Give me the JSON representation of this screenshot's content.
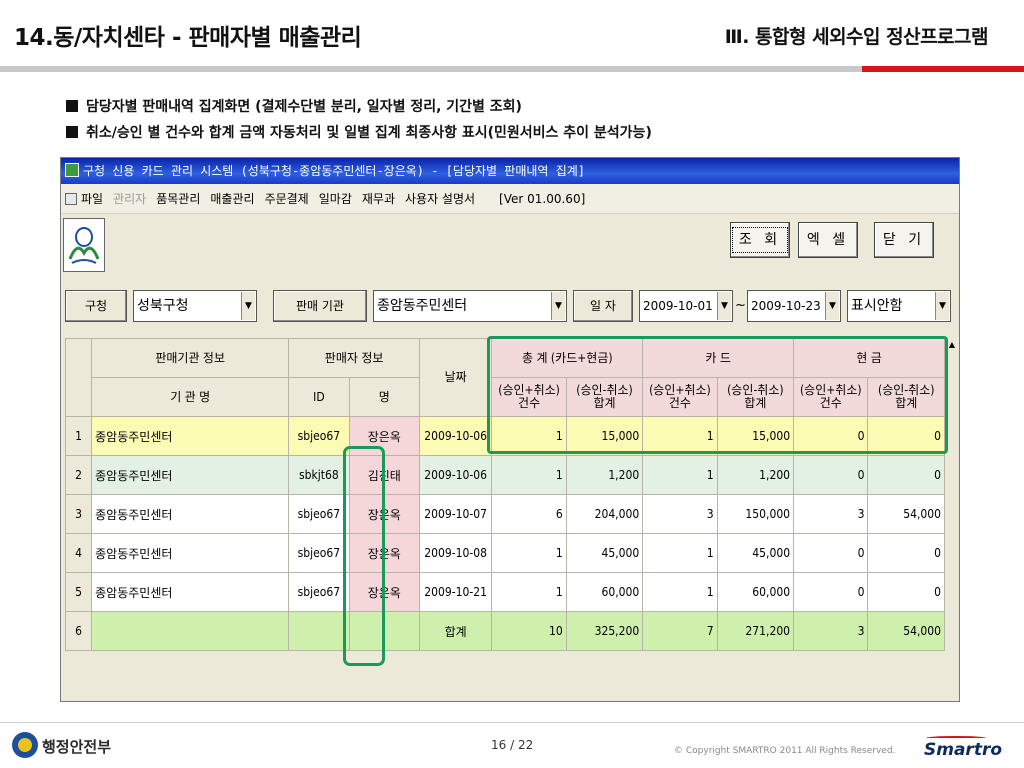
{
  "slide": {
    "title": "14.동/자치센타 - 판매자별 매출관리",
    "subtitle": "Ⅲ. 통합형 세외수입 정산프로그램",
    "bullets": [
      "담당자별 판매내역 집계화면 (결제수단별 분리, 일자별 정리, 기간별 조회)",
      "취소/승인 별 건수와 합계 금액 자동처리 및 일별 집계 최종사항 표시(민원서비스 추이 분석가능)"
    ]
  },
  "window": {
    "title": "구청 신용 카드 관리 시스템 (성북구청-종암동주민센터-장은옥) - [담당자별 판매내역 집계]",
    "menu": [
      "파일",
      "관리자",
      "품목관리",
      "매출관리",
      "주문결제",
      "일마감",
      "재무과",
      "사용자 설명서"
    ],
    "version": "[Ver 01.00.60]",
    "buttons": {
      "inquiry": "조 회",
      "excel": "엑 셀",
      "close": "닫 기"
    }
  },
  "filters": {
    "office_label": "구청",
    "office_value": "성북구청",
    "seller_label": "판매 기관",
    "seller_value": "종암동주민센터",
    "date_label": "일 자",
    "date_from": "2009-10-01",
    "date_sep": "~",
    "date_to": "2009-10-23",
    "display_value": "표시안함"
  },
  "grid": {
    "header_top": {
      "org_info": "판매기관 정보",
      "seller_info": "판매자 정보",
      "date": "날짜",
      "total": "총 계 (카드+현금)",
      "card": "카 드",
      "cash": "현 금"
    },
    "header_sub": {
      "org_name": "기 관 명",
      "id": "ID",
      "name": "명",
      "count": "(승인+취소)\n건수",
      "sum": "(승인-취소)\n합계"
    },
    "rows": [
      {
        "no": "1",
        "org": "종암동주민센터",
        "id": "sbjeo67",
        "name": "장은옥",
        "date": "2009-10-06",
        "t_cnt": "1",
        "t_sum": "15,000",
        "c_cnt": "1",
        "c_sum": "15,000",
        "m_cnt": "0",
        "m_sum": "0"
      },
      {
        "no": "2",
        "org": "종암동주민센터",
        "id": "sbkjt68",
        "name": "김진태",
        "date": "2009-10-06",
        "t_cnt": "1",
        "t_sum": "1,200",
        "c_cnt": "1",
        "c_sum": "1,200",
        "m_cnt": "0",
        "m_sum": "0"
      },
      {
        "no": "3",
        "org": "종암동주민센터",
        "id": "sbjeo67",
        "name": "장은옥",
        "date": "2009-10-07",
        "t_cnt": "6",
        "t_sum": "204,000",
        "c_cnt": "3",
        "c_sum": "150,000",
        "m_cnt": "3",
        "m_sum": "54,000"
      },
      {
        "no": "4",
        "org": "종암동주민센터",
        "id": "sbjeo67",
        "name": "장은옥",
        "date": "2009-10-08",
        "t_cnt": "1",
        "t_sum": "45,000",
        "c_cnt": "1",
        "c_sum": "45,000",
        "m_cnt": "0",
        "m_sum": "0"
      },
      {
        "no": "5",
        "org": "종암동주민센터",
        "id": "sbjeo67",
        "name": "장은옥",
        "date": "2009-10-21",
        "t_cnt": "1",
        "t_sum": "60,000",
        "c_cnt": "1",
        "c_sum": "60,000",
        "m_cnt": "0",
        "m_sum": "0"
      }
    ],
    "total_row": {
      "no": "6",
      "label": "합계",
      "t_cnt": "10",
      "t_sum": "325,200",
      "c_cnt": "7",
      "c_sum": "271,200",
      "m_cnt": "3",
      "m_sum": "54,000"
    }
  },
  "footer": {
    "ministry": "행정안전부",
    "page": "16 / 22",
    "copyright": "© Copyright SMARTRO 2011 All Rights Reserved.",
    "brand": "Smartro"
  },
  "colors": {
    "highlight": "#1a9a5a",
    "header_pink": "#f2d9da",
    "row_yellow": "#fbfbb4",
    "row_green": "#e3f1e4",
    "row_total": "#cff0ad",
    "accent_red": "#d7141a"
  }
}
